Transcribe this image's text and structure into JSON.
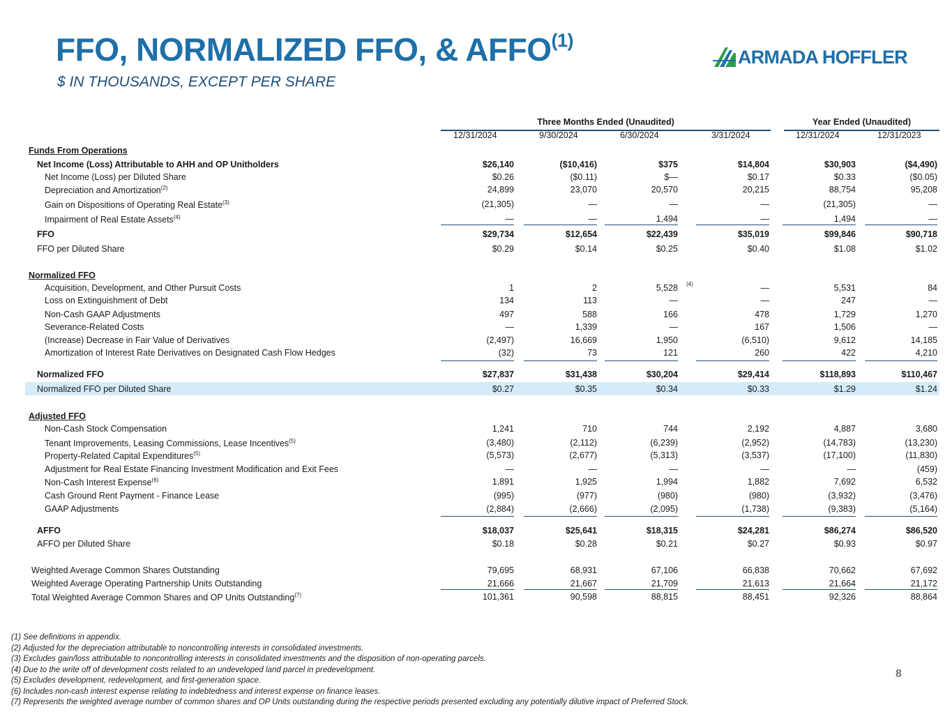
{
  "title": "FFO, NORMALIZED FFO, & AFFO",
  "title_sup": "(1)",
  "subtitle": "$ IN THOUSANDS, EXCEPT PER SHARE",
  "logo_text": "ARMADA HOFFLER",
  "groups": {
    "three_months": "Three Months Ended (Unaudited)",
    "year": "Year Ended (Unaudited)"
  },
  "columns": [
    "12/31/2024",
    "9/30/2024",
    "6/30/2024",
    "3/31/2024",
    "12/31/2024",
    "12/31/2023"
  ],
  "rows": [
    {
      "label": "Funds From Operations",
      "sup": "",
      "values": [
        "",
        "",
        "",
        "",
        "",
        ""
      ]
    },
    {
      "label": "Net Income (Loss) Attributable to AHH and OP Unitholders",
      "sup": "",
      "values": [
        "$26,140",
        "($10,416)",
        "$375",
        "$14,804",
        "$30,903",
        "($4,490)"
      ]
    },
    {
      "label": "Net Income (Loss) per Diluted Share",
      "sup": "",
      "values": [
        "$0.26",
        "($0.11)",
        "$—",
        "$0.17",
        "$0.33",
        "($0.05)"
      ]
    },
    {
      "label": "Depreciation and Amortization",
      "sup": "(2)",
      "values": [
        "24,899",
        "23,070",
        "20,570",
        "20,215",
        "88,754",
        "95,208"
      ]
    },
    {
      "label": "Gain on Dispositions of Operating Real Estate",
      "sup": "(3)",
      "values": [
        "(21,305)",
        "—",
        "—",
        "—",
        "(21,305)",
        "—"
      ]
    },
    {
      "label": "Impairment of Real Estate Assets",
      "sup": "(4)",
      "values": [
        "—",
        "—",
        "1,494",
        "—",
        "1,494",
        "—"
      ]
    },
    {
      "label": "FFO",
      "sup": "",
      "values": [
        "$29,734",
        "$12,654",
        "$22,439",
        "$35,019",
        "$99,846",
        "$90,718"
      ]
    },
    {
      "label": "FFO per Diluted Share",
      "sup": "",
      "values": [
        "$0.29",
        "$0.14",
        "$0.25",
        "$0.40",
        "$1.08",
        "$1.02"
      ]
    },
    {
      "label": "Normalized FFO",
      "sup": "",
      "values": [
        "",
        "",
        "",
        "",
        "",
        ""
      ]
    },
    {
      "label": "Acquisition, Development, and Other Pursuit Costs",
      "sup": "",
      "values": [
        "1",
        "2",
        "5,528",
        "—",
        "5,531",
        "84"
      ]
    },
    {
      "label": "Loss on Extinguishment of Debt",
      "sup": "",
      "values": [
        "134",
        "113",
        "—",
        "—",
        "247",
        "—"
      ]
    },
    {
      "label": "Non-Cash GAAP Adjustments",
      "sup": "",
      "values": [
        "497",
        "588",
        "166",
        "478",
        "1,729",
        "1,270"
      ]
    },
    {
      "label": "Severance-Related Costs",
      "sup": "",
      "values": [
        "—",
        "1,339",
        "—",
        "167",
        "1,506",
        "—"
      ]
    },
    {
      "label": "(Increase) Decrease in Fair Value of Derivatives",
      "sup": "",
      "values": [
        "(2,497)",
        "16,669",
        "1,950",
        "(6,510)",
        "9,612",
        "14,185"
      ]
    },
    {
      "label": "Amortization of Interest Rate Derivatives on Designated Cash Flow Hedges",
      "sup": "",
      "values": [
        "(32)",
        "73",
        "121",
        "260",
        "422",
        "4,210"
      ]
    },
    {
      "label": "Normalized FFO",
      "sup": "",
      "values": [
        "$27,837",
        "$31,438",
        "$30,204",
        "$29,414",
        "$118,893",
        "$110,467"
      ]
    },
    {
      "label": "Normalized FFO per Diluted Share",
      "sup": "",
      "values": [
        "$0.27",
        "$0.35",
        "$0.34",
        "$0.33",
        "$1.29",
        "$1.24"
      ]
    },
    {
      "label": "Adjusted FFO",
      "sup": "",
      "values": [
        "",
        "",
        "",
        "",
        "",
        ""
      ]
    },
    {
      "label": "Non-Cash Stock Compensation",
      "sup": "",
      "values": [
        "1,241",
        "710",
        "744",
        "2,192",
        "4,887",
        "3,680"
      ]
    },
    {
      "label": "Tenant Improvements, Leasing Commissions, Lease Incentives",
      "sup": "(5)",
      "values": [
        "(3,480)",
        "(2,112)",
        "(6,239)",
        "(2,952)",
        "(14,783)",
        "(13,230)"
      ]
    },
    {
      "label": "Property-Related Capital Expenditures",
      "sup": "(5)",
      "values": [
        "(5,573)",
        "(2,677)",
        "(5,313)",
        "(3,537)",
        "(17,100)",
        "(11,830)"
      ]
    },
    {
      "label": "Adjustment for Real Estate Financing Investment Modification and Exit Fees",
      "sup": "",
      "values": [
        "—",
        "—",
        "—",
        "—",
        "—",
        "(459)"
      ]
    },
    {
      "label": "Non-Cash Interest Expense",
      "sup": "(6)",
      "values": [
        "1,891",
        "1,925",
        "1,994",
        "1,882",
        "7,692",
        "6,532"
      ]
    },
    {
      "label": "Cash Ground Rent Payment - Finance Lease",
      "sup": "",
      "values": [
        "(995)",
        "(977)",
        "(980)",
        "(980)",
        "(3,932)",
        "(3,476)"
      ]
    },
    {
      "label": "GAAP Adjustments",
      "sup": "",
      "values": [
        "(2,884)",
        "(2,666)",
        "(2,095)",
        "(1,738)",
        "(9,383)",
        "(5,164)"
      ]
    },
    {
      "label": "AFFO",
      "sup": "",
      "values": [
        "$18,037",
        "$25,641",
        "$18,315",
        "$24,281",
        "$86,274",
        "$86,520"
      ]
    },
    {
      "label": "AFFO per Diluted Share",
      "sup": "",
      "values": [
        "$0.18",
        "$0.28",
        "$0.21",
        "$0.27",
        "$0.93",
        "$0.97"
      ]
    },
    {
      "label": "Weighted Average Common Shares Outstanding",
      "sup": "",
      "values": [
        "79,695",
        "68,931",
        "67,106",
        "66,838",
        "70,662",
        "67,692"
      ]
    },
    {
      "label": "Weighted Average Operating Partnership Units Outstanding",
      "sup": "",
      "values": [
        "21,666",
        "21,667",
        "21,709",
        "21,613",
        "21,664",
        "21,172"
      ]
    },
    {
      "label": "Total Weighted Average Common Shares and OP Units Outstanding",
      "sup": "(7)",
      "values": [
        "101,361",
        "90,598",
        "88,815",
        "88,451",
        "92,326",
        "88,864"
      ]
    }
  ],
  "inline_footnote_mark": "(4)",
  "footnotes": [
    "(1)   See definitions in appendix.",
    "(2)   Adjusted for the depreciation attributable to noncontrolling interests in consolidated investments.",
    "(3)   Excludes gain/loss attributable to noncontrolling interests in consolidated investments and the disposition of non-operating parcels.",
    "(4)   Due to the write off of development costs related to an undeveloped land parcel in predevelopment.",
    "(5)   Excludes development, redevelopment, and first-generation space.",
    "(6)   Includes non-cash interest expense relating to indebtedness and interest expense on finance leases.",
    "(7)   Represents the weighted average number of common shares and OP Units outstanding during the respective periods presented excluding any potentially dilutive impact of Preferred Stock."
  ],
  "page_number": "8"
}
